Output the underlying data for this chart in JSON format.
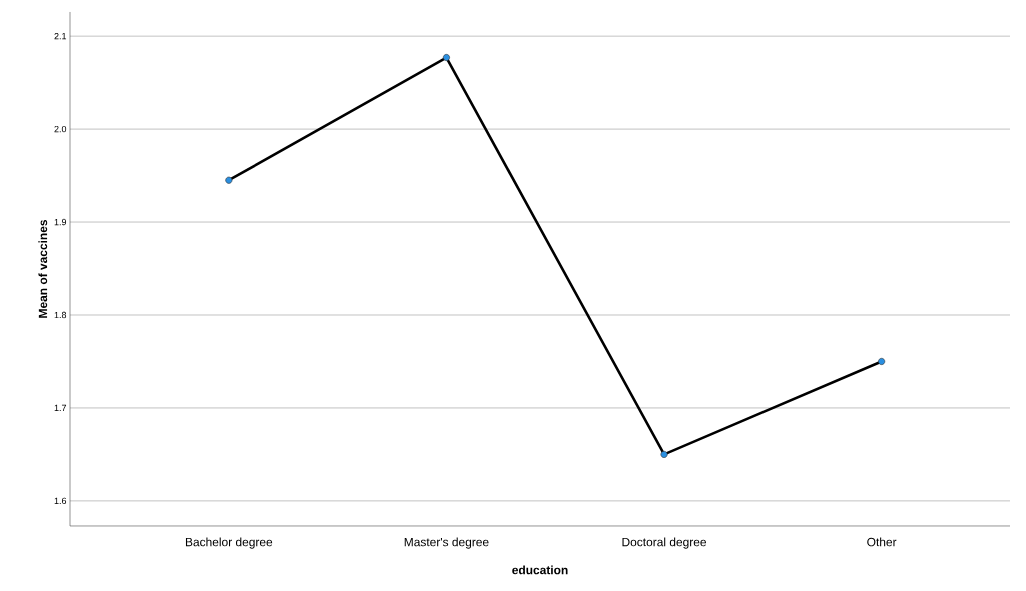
{
  "chart_data": {
    "type": "line",
    "xlabel": "education",
    "ylabel": "Mean of vaccines",
    "categories": [
      "Bachelor degree",
      "Master's degree",
      "Doctoral degree",
      "Other"
    ],
    "series": [
      {
        "color": "#000000",
        "values": [
          1.945,
          2.077,
          1.65,
          1.75
        ]
      }
    ],
    "ylim": [
      1.573,
      2.126
    ],
    "yticks": [
      1.6,
      1.7,
      1.8,
      1.9,
      {
        "value": 2.0,
        "label": "2.0"
      },
      2.1
    ],
    "grid": "y",
    "marker": "circle",
    "line_style": "solid"
  }
}
